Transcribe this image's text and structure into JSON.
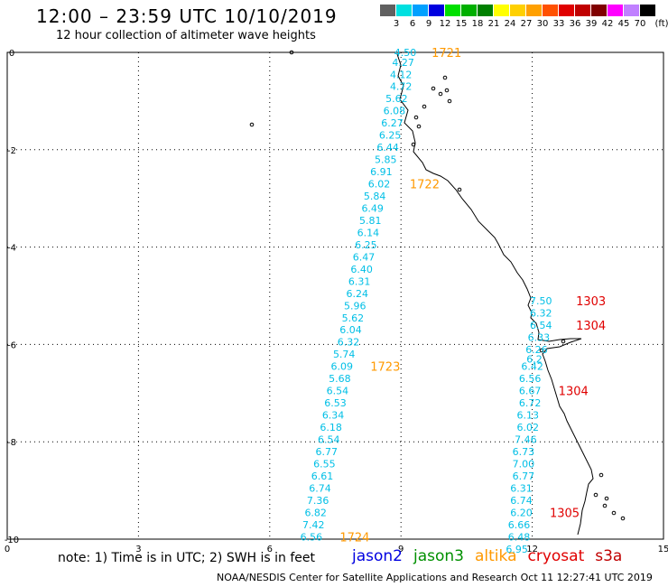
{
  "header": {
    "title": "12:00 – 23:59 UTC 10/10/2019",
    "subtitle": "12 hour collection of altimeter wave heights"
  },
  "color_scale": {
    "unit": "(ft)",
    "swatches": [
      "#606060",
      "#00e0e0",
      "#00a0ff",
      "#0000e0",
      "#00e000",
      "#00b000",
      "#008000",
      "#ffff00",
      "#ffd000",
      "#ffa000",
      "#ff5000",
      "#e00000",
      "#c00000",
      "#800000",
      "#ff00ff",
      "#c080ff",
      "#000000"
    ],
    "labels": [
      "3",
      "6",
      "9",
      "12",
      "15",
      "18",
      "21",
      "24",
      "27",
      "30",
      "33",
      "36",
      "39",
      "42",
      "45",
      "70"
    ]
  },
  "note": "note: 1) Time is in UTC; 2) SWH is in feet",
  "satellites": [
    {
      "name": "jason2",
      "color": "#0000e0"
    },
    {
      "name": "jason3",
      "color": "#009000"
    },
    {
      "name": "altika",
      "color": "#ff9900"
    },
    {
      "name": "cryosat",
      "color": "#e00000"
    },
    {
      "name": "s3a",
      "color": "#c00000"
    }
  ],
  "footer": "NOAA/NESDIS Center for Satellite Applications and Research    Oct 11 12:27:41 UTC 2019",
  "chart_data": {
    "type": "scatter",
    "xlim": [
      0,
      15
    ],
    "ylim": [
      -10,
      0
    ],
    "x_ticks": [
      "0",
      "3",
      "6",
      "9",
      "12",
      "15"
    ],
    "y_ticks": [
      "0",
      "-2",
      "-4",
      "-6",
      "-8",
      "-10"
    ],
    "grid": true,
    "text_color_swh": "#00bfe6",
    "text_color_time_altika": "#ff9900",
    "text_color_time_cryosat": "#e00000",
    "series": [
      {
        "name": "altika",
        "points": [
          {
            "x": 9.1,
            "y": -0.0,
            "label": "4.50"
          },
          {
            "x": 9.05,
            "y": -0.2,
            "label": "4.27"
          },
          {
            "x": 9.0,
            "y": -0.45,
            "label": "4.12"
          },
          {
            "x": 9.0,
            "y": -0.7,
            "label": "4.72"
          },
          {
            "x": 8.9,
            "y": -0.95,
            "label": "5.62"
          },
          {
            "x": 8.85,
            "y": -1.2,
            "label": "6.08"
          },
          {
            "x": 8.8,
            "y": -1.45,
            "label": "6.27"
          },
          {
            "x": 8.75,
            "y": -1.7,
            "label": "6.25"
          },
          {
            "x": 8.7,
            "y": -1.95,
            "label": "6.44"
          },
          {
            "x": 8.65,
            "y": -2.2,
            "label": "5.85"
          },
          {
            "x": 8.55,
            "y": -2.45,
            "label": "6.91"
          },
          {
            "x": 8.5,
            "y": -2.7,
            "label": "6.02"
          },
          {
            "x": 8.4,
            "y": -2.95,
            "label": "5.84"
          },
          {
            "x": 8.35,
            "y": -3.2,
            "label": "6.49"
          },
          {
            "x": 8.3,
            "y": -3.45,
            "label": "5.81"
          },
          {
            "x": 8.25,
            "y": -3.7,
            "label": "6.14"
          },
          {
            "x": 8.2,
            "y": -3.95,
            "label": "6.25"
          },
          {
            "x": 8.15,
            "y": -4.2,
            "label": "6.47"
          },
          {
            "x": 8.1,
            "y": -4.45,
            "label": "6.40"
          },
          {
            "x": 8.05,
            "y": -4.7,
            "label": "6.31"
          },
          {
            "x": 8.0,
            "y": -4.95,
            "label": "6.24"
          },
          {
            "x": 7.95,
            "y": -5.2,
            "label": "5.96"
          },
          {
            "x": 7.9,
            "y": -5.45,
            "label": "5.62"
          },
          {
            "x": 7.85,
            "y": -5.7,
            "label": "6.04"
          },
          {
            "x": 7.8,
            "y": -5.95,
            "label": "6.32"
          },
          {
            "x": 7.7,
            "y": -6.2,
            "label": "5.74"
          },
          {
            "x": 7.65,
            "y": -6.45,
            "label": "6.09"
          },
          {
            "x": 7.6,
            "y": -6.7,
            "label": "5.68"
          },
          {
            "x": 7.55,
            "y": -6.95,
            "label": "6.54"
          },
          {
            "x": 7.5,
            "y": -7.2,
            "label": "6.53"
          },
          {
            "x": 7.45,
            "y": -7.45,
            "label": "6.34"
          },
          {
            "x": 7.4,
            "y": -7.7,
            "label": "6.18"
          },
          {
            "x": 7.35,
            "y": -7.95,
            "label": "6.54"
          },
          {
            "x": 7.3,
            "y": -8.2,
            "label": "6.77"
          },
          {
            "x": 7.25,
            "y": -8.45,
            "label": "6.55"
          },
          {
            "x": 7.2,
            "y": -8.7,
            "label": "6.61"
          },
          {
            "x": 7.15,
            "y": -8.95,
            "label": "6.74"
          },
          {
            "x": 7.1,
            "y": -9.2,
            "label": "7.36"
          },
          {
            "x": 7.05,
            "y": -9.45,
            "label": "6.82"
          },
          {
            "x": 7.0,
            "y": -9.7,
            "label": "7.42"
          },
          {
            "x": 6.95,
            "y": -9.95,
            "label": "6.56"
          }
        ],
        "time_labels": [
          {
            "x": 9.7,
            "y": 0.0,
            "label": "1721"
          },
          {
            "x": 9.2,
            "y": -2.7,
            "label": "1722"
          },
          {
            "x": 8.3,
            "y": -6.45,
            "label": "1723"
          },
          {
            "x": 7.6,
            "y": -9.95,
            "label": "1724"
          }
        ]
      },
      {
        "name": "cryosat",
        "points": [
          {
            "x": 12.2,
            "y": -5.1,
            "label": "7.50"
          },
          {
            "x": 12.2,
            "y": -5.35,
            "label": "6.32"
          },
          {
            "x": 12.2,
            "y": -5.6,
            "label": "6.54"
          },
          {
            "x": 12.15,
            "y": -5.85,
            "label": "6.33"
          },
          {
            "x": 12.1,
            "y": -6.1,
            "label": "6.26"
          },
          {
            "x": 12.05,
            "y": -6.3,
            "label": "6.2"
          },
          {
            "x": 12.0,
            "y": -6.45,
            "label": "6.42"
          },
          {
            "x": 11.95,
            "y": -6.7,
            "label": "6.56"
          },
          {
            "x": 11.95,
            "y": -6.95,
            "label": "6.67"
          },
          {
            "x": 11.95,
            "y": -7.2,
            "label": "6.72"
          },
          {
            "x": 11.9,
            "y": -7.45,
            "label": "6.13"
          },
          {
            "x": 11.9,
            "y": -7.7,
            "label": "6.02"
          },
          {
            "x": 11.85,
            "y": -7.95,
            "label": "7.46"
          },
          {
            "x": 11.8,
            "y": -8.2,
            "label": "6.73"
          },
          {
            "x": 11.8,
            "y": -8.45,
            "label": "7.00"
          },
          {
            "x": 11.8,
            "y": -8.7,
            "label": "6.77"
          },
          {
            "x": 11.75,
            "y": -8.95,
            "label": "6.31"
          },
          {
            "x": 11.75,
            "y": -9.2,
            "label": "6.74"
          },
          {
            "x": 11.75,
            "y": -9.45,
            "label": "6.20"
          },
          {
            "x": 11.7,
            "y": -9.7,
            "label": "6.66"
          },
          {
            "x": 11.7,
            "y": -9.95,
            "label": "6.48"
          },
          {
            "x": 11.65,
            "y": -10.2,
            "label": "6.95"
          }
        ],
        "time_labels": [
          {
            "x": 13.0,
            "y": -5.1,
            "label": "1303"
          },
          {
            "x": 13.0,
            "y": -5.6,
            "label": "1304"
          },
          {
            "x": 12.6,
            "y": -6.95,
            "label": "1304"
          },
          {
            "x": 12.4,
            "y": -9.45,
            "label": "1305"
          }
        ]
      }
    ]
  }
}
